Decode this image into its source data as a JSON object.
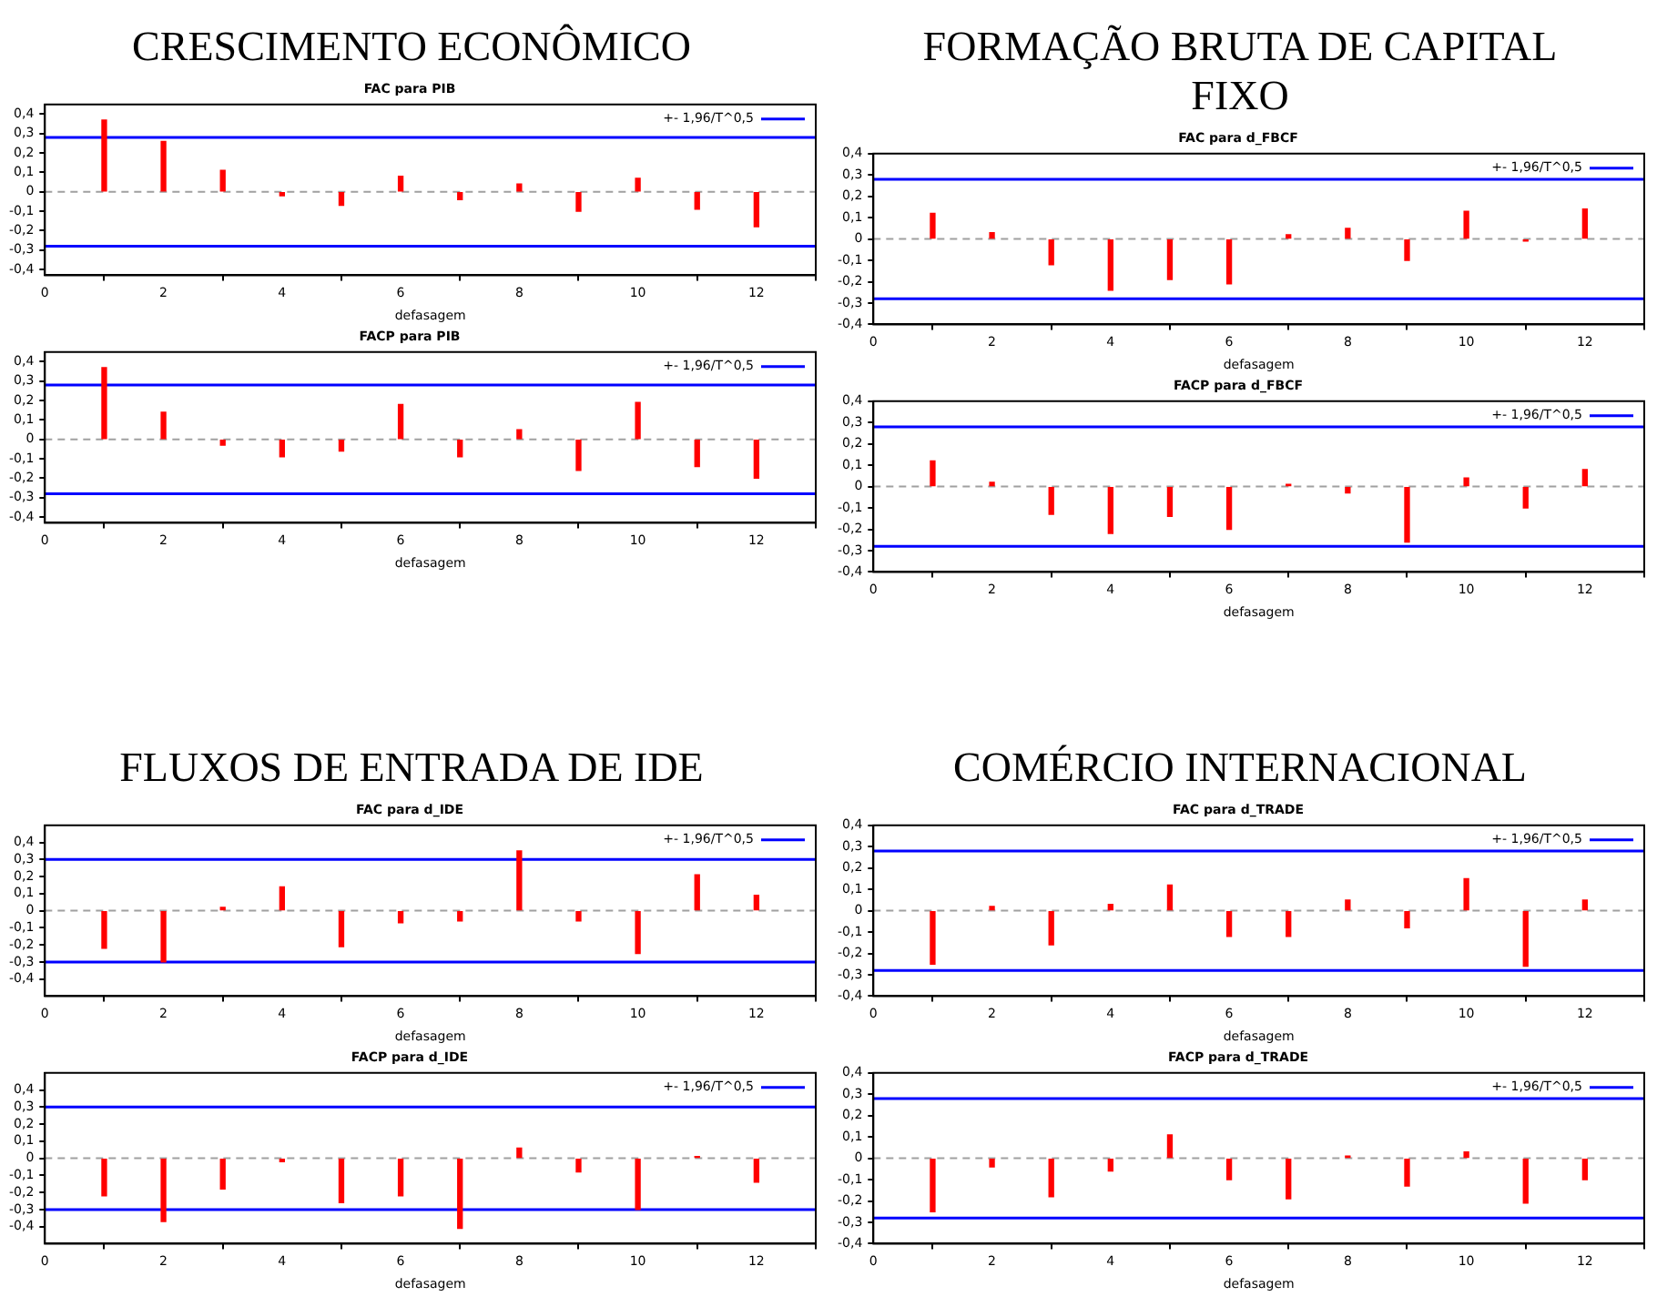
{
  "chart_data": [
    {
      "type": "bar",
      "title": "CRESCIMENTO ECONÔMICO",
      "subtitle": "FAC para PIB",
      "xlabel": "defasagem",
      "x": [
        1,
        2,
        3,
        4,
        5,
        6,
        7,
        8,
        9,
        10,
        11,
        12
      ],
      "color": "#ff0000",
      "values": [
        0.37,
        0.26,
        0.11,
        -0.02,
        -0.07,
        0.08,
        -0.04,
        0.04,
        -0.1,
        0.07,
        -0.09,
        -0.18
      ],
      "xlim": [
        0,
        13
      ],
      "xticks": [
        0,
        2,
        4,
        6,
        8,
        10,
        12
      ],
      "ylim": [
        -0.43,
        0.45
      ],
      "yticks": [
        {
          "value": -0.4,
          "label": "-0,4"
        },
        {
          "value": -0.3,
          "label": "-0,3"
        },
        {
          "value": -0.2,
          "label": "-0,2"
        },
        {
          "value": -0.1,
          "label": "-0,1"
        },
        {
          "value": 0,
          "label": "0"
        },
        {
          "value": 0.1,
          "label": "0,1"
        },
        {
          "value": 0.2,
          "label": "0,2"
        },
        {
          "value": 0.3,
          "label": "0,3"
        },
        {
          "value": 0.4,
          "label": "0,4"
        }
      ],
      "ref_lines": [
        {
          "axis": "y",
          "value": 0.28,
          "label": "+- 1,96/T^0,5",
          "color": "#0000ff"
        },
        {
          "axis": "y",
          "value": -0.28,
          "color": "#0000ff"
        },
        {
          "axis": "y",
          "value": 0,
          "color": "#a0a0a0",
          "line_style": "dashed"
        }
      ],
      "legend": "top right",
      "grid": false
    },
    {
      "type": "bar",
      "title": "FACP para PIB",
      "xlabel": "defasagem",
      "x": [
        1,
        2,
        3,
        4,
        5,
        6,
        7,
        8,
        9,
        10,
        11,
        12
      ],
      "color": "#ff0000",
      "values": [
        0.37,
        0.14,
        -0.03,
        -0.09,
        -0.06,
        0.18,
        -0.09,
        0.05,
        -0.16,
        0.19,
        -0.14,
        -0.2
      ],
      "xlim": [
        0,
        13
      ],
      "xticks": [
        0,
        2,
        4,
        6,
        8,
        10,
        12
      ],
      "ylim": [
        -0.43,
        0.45
      ],
      "yticks": [
        {
          "value": -0.4,
          "label": "-0,4"
        },
        {
          "value": -0.3,
          "label": "-0,3"
        },
        {
          "value": -0.2,
          "label": "-0,2"
        },
        {
          "value": -0.1,
          "label": "-0,1"
        },
        {
          "value": 0,
          "label": "0"
        },
        {
          "value": 0.1,
          "label": "0,1"
        },
        {
          "value": 0.2,
          "label": "0,2"
        },
        {
          "value": 0.3,
          "label": "0,3"
        },
        {
          "value": 0.4,
          "label": "0,4"
        }
      ],
      "ref_lines": [
        {
          "axis": "y",
          "value": 0.28,
          "label": "+- 1,96/T^0,5",
          "color": "#0000ff"
        },
        {
          "axis": "y",
          "value": -0.28,
          "color": "#0000ff"
        },
        {
          "axis": "y",
          "value": 0,
          "color": "#a0a0a0",
          "line_style": "dashed"
        }
      ],
      "legend": "top right",
      "grid": false
    },
    {
      "type": "bar",
      "title": "FORMAÇÃO BRUTA DE CAPITAL FIXO",
      "subtitle": "FAC para d_FBCF",
      "xlabel": "defasagem",
      "x": [
        1,
        2,
        3,
        4,
        5,
        6,
        7,
        8,
        9,
        10,
        11,
        12
      ],
      "color": "#ff0000",
      "values": [
        0.12,
        0.03,
        -0.12,
        -0.24,
        -0.19,
        -0.21,
        0.02,
        0.05,
        -0.1,
        0.13,
        -0.01,
        0.14
      ],
      "xlim": [
        0,
        13
      ],
      "xticks": [
        0,
        2,
        4,
        6,
        8,
        10,
        12
      ],
      "ylim": [
        -0.4,
        0.4
      ],
      "yticks": [
        {
          "value": -0.4,
          "label": "-0,4"
        },
        {
          "value": -0.3,
          "label": "-0,3"
        },
        {
          "value": -0.2,
          "label": "-0,2"
        },
        {
          "value": -0.1,
          "label": "-0,1"
        },
        {
          "value": 0,
          "label": "0"
        },
        {
          "value": 0.1,
          "label": "0,1"
        },
        {
          "value": 0.2,
          "label": "0,2"
        },
        {
          "value": 0.3,
          "label": "0,3"
        },
        {
          "value": 0.4,
          "label": "0,4"
        }
      ],
      "ref_lines": [
        {
          "axis": "y",
          "value": 0.28,
          "label": "+- 1,96/T^0,5",
          "color": "#0000ff"
        },
        {
          "axis": "y",
          "value": -0.28,
          "color": "#0000ff"
        },
        {
          "axis": "y",
          "value": 0,
          "color": "#a0a0a0",
          "line_style": "dashed"
        }
      ],
      "legend": "top right",
      "grid": false
    },
    {
      "type": "bar",
      "title": "FACP para d_FBCF",
      "xlabel": "defasagem",
      "x": [
        1,
        2,
        3,
        4,
        5,
        6,
        7,
        8,
        9,
        10,
        11,
        12
      ],
      "color": "#ff0000",
      "values": [
        0.12,
        0.02,
        -0.13,
        -0.22,
        -0.14,
        -0.2,
        0.01,
        -0.03,
        -0.26,
        0.04,
        -0.1,
        0.08
      ],
      "xlim": [
        0,
        13
      ],
      "xticks": [
        0,
        2,
        4,
        6,
        8,
        10,
        12
      ],
      "ylim": [
        -0.4,
        0.4
      ],
      "yticks": [
        {
          "value": -0.4,
          "label": "-0,4"
        },
        {
          "value": -0.3,
          "label": "-0,3"
        },
        {
          "value": -0.2,
          "label": "-0,2"
        },
        {
          "value": -0.1,
          "label": "-0,1"
        },
        {
          "value": 0,
          "label": "0"
        },
        {
          "value": 0.1,
          "label": "0,1"
        },
        {
          "value": 0.2,
          "label": "0,2"
        },
        {
          "value": 0.3,
          "label": "0,3"
        },
        {
          "value": 0.4,
          "label": "0,4"
        }
      ],
      "ref_lines": [
        {
          "axis": "y",
          "value": 0.28,
          "label": "+- 1,96/T^0,5",
          "color": "#0000ff"
        },
        {
          "axis": "y",
          "value": -0.28,
          "color": "#0000ff"
        },
        {
          "axis": "y",
          "value": 0,
          "color": "#a0a0a0",
          "line_style": "dashed"
        }
      ],
      "legend": "top right",
      "grid": false
    },
    {
      "type": "bar",
      "title": "FLUXOS DE ENTRADA DE IDE",
      "subtitle": "FAC para d_IDE",
      "xlabel": "defasagem",
      "x": [
        1,
        2,
        3,
        4,
        5,
        6,
        7,
        8,
        9,
        10,
        11,
        12
      ],
      "color": "#ff0000",
      "values": [
        -0.22,
        -0.3,
        0.02,
        0.14,
        -0.21,
        -0.07,
        -0.06,
        0.35,
        -0.06,
        -0.25,
        0.21,
        0.09
      ],
      "xlim": [
        0,
        13
      ],
      "xticks": [
        0,
        2,
        4,
        6,
        8,
        10,
        12
      ],
      "ylim": [
        -0.5,
        0.5
      ],
      "yticks": [
        {
          "value": -0.4,
          "label": "-0,4"
        },
        {
          "value": -0.3,
          "label": "-0,3"
        },
        {
          "value": -0.2,
          "label": "-0,2"
        },
        {
          "value": -0.1,
          "label": "-0,1"
        },
        {
          "value": 0,
          "label": "0"
        },
        {
          "value": 0.1,
          "label": "0,1"
        },
        {
          "value": 0.2,
          "label": "0,2"
        },
        {
          "value": 0.3,
          "label": "0,3"
        },
        {
          "value": 0.4,
          "label": "0,4"
        }
      ],
      "ref_lines": [
        {
          "axis": "y",
          "value": 0.3,
          "label": "+- 1,96/T^0,5",
          "color": "#0000ff"
        },
        {
          "axis": "y",
          "value": -0.3,
          "color": "#0000ff"
        },
        {
          "axis": "y",
          "value": 0,
          "color": "#a0a0a0",
          "line_style": "dashed"
        }
      ],
      "legend": "top right",
      "grid": false
    },
    {
      "type": "bar",
      "title": "FACP para d_IDE",
      "xlabel": "defasagem",
      "x": [
        1,
        2,
        3,
        4,
        5,
        6,
        7,
        8,
        9,
        10,
        11,
        12
      ],
      "color": "#ff0000",
      "values": [
        -0.22,
        -0.37,
        -0.18,
        -0.02,
        -0.26,
        -0.22,
        -0.41,
        0.06,
        -0.08,
        -0.3,
        0.01,
        -0.14
      ],
      "xlim": [
        0,
        13
      ],
      "xticks": [
        0,
        2,
        4,
        6,
        8,
        10,
        12
      ],
      "ylim": [
        -0.5,
        0.5
      ],
      "yticks": [
        {
          "value": -0.4,
          "label": "-0,4"
        },
        {
          "value": -0.3,
          "label": "-0,3"
        },
        {
          "value": -0.2,
          "label": "-0,2"
        },
        {
          "value": -0.1,
          "label": "-0,1"
        },
        {
          "value": 0,
          "label": "0"
        },
        {
          "value": 0.1,
          "label": "0,1"
        },
        {
          "value": 0.2,
          "label": "0,2"
        },
        {
          "value": 0.3,
          "label": "0,3"
        },
        {
          "value": 0.4,
          "label": "0,4"
        }
      ],
      "ref_lines": [
        {
          "axis": "y",
          "value": 0.3,
          "label": "+- 1,96/T^0,5",
          "color": "#0000ff"
        },
        {
          "axis": "y",
          "value": -0.3,
          "color": "#0000ff"
        },
        {
          "axis": "y",
          "value": 0,
          "color": "#a0a0a0",
          "line_style": "dashed"
        }
      ],
      "legend": "top right",
      "grid": false
    },
    {
      "type": "bar",
      "title": "COMÉRCIO INTERNACIONAL",
      "subtitle": "FAC para d_TRADE",
      "xlabel": "defasagem",
      "x": [
        1,
        2,
        3,
        4,
        5,
        6,
        7,
        8,
        9,
        10,
        11,
        12
      ],
      "color": "#ff0000",
      "values": [
        -0.25,
        0.02,
        -0.16,
        0.03,
        0.12,
        -0.12,
        -0.12,
        0.05,
        -0.08,
        0.15,
        -0.26,
        0.05
      ],
      "xlim": [
        0,
        13
      ],
      "xticks": [
        0,
        2,
        4,
        6,
        8,
        10,
        12
      ],
      "ylim": [
        -0.4,
        0.4
      ],
      "yticks": [
        {
          "value": -0.4,
          "label": "-0,4"
        },
        {
          "value": -0.3,
          "label": "-0,3"
        },
        {
          "value": -0.2,
          "label": "-0,2"
        },
        {
          "value": -0.1,
          "label": "-0,1"
        },
        {
          "value": 0,
          "label": "0"
        },
        {
          "value": 0.1,
          "label": "0,1"
        },
        {
          "value": 0.2,
          "label": "0,2"
        },
        {
          "value": 0.3,
          "label": "0,3"
        },
        {
          "value": 0.4,
          "label": "0,4"
        }
      ],
      "ref_lines": [
        {
          "axis": "y",
          "value": 0.28,
          "label": "+- 1,96/T^0,5",
          "color": "#0000ff"
        },
        {
          "axis": "y",
          "value": -0.28,
          "color": "#0000ff"
        },
        {
          "axis": "y",
          "value": 0,
          "color": "#a0a0a0",
          "line_style": "dashed"
        }
      ],
      "legend": "top right",
      "grid": false
    },
    {
      "type": "bar",
      "title": "FACP para d_TRADE",
      "xlabel": "defasagem",
      "x": [
        1,
        2,
        3,
        4,
        5,
        6,
        7,
        8,
        9,
        10,
        11,
        12
      ],
      "color": "#ff0000",
      "values": [
        -0.25,
        -0.04,
        -0.18,
        -0.06,
        0.11,
        -0.1,
        -0.19,
        0.01,
        -0.13,
        0.03,
        -0.21,
        -0.1
      ],
      "xlim": [
        0,
        13
      ],
      "xticks": [
        0,
        2,
        4,
        6,
        8,
        10,
        12
      ],
      "ylim": [
        -0.4,
        0.4
      ],
      "yticks": [
        {
          "value": -0.4,
          "label": "-0,4"
        },
        {
          "value": -0.3,
          "label": "-0,3"
        },
        {
          "value": -0.2,
          "label": "-0,2"
        },
        {
          "value": -0.1,
          "label": "-0,1"
        },
        {
          "value": 0,
          "label": "0"
        },
        {
          "value": 0.1,
          "label": "0,1"
        },
        {
          "value": 0.2,
          "label": "0,2"
        },
        {
          "value": 0.3,
          "label": "0,3"
        },
        {
          "value": 0.4,
          "label": "0,4"
        }
      ],
      "ref_lines": [
        {
          "axis": "y",
          "value": 0.28,
          "label": "+- 1,96/T^0,5",
          "color": "#0000ff"
        },
        {
          "axis": "y",
          "value": -0.28,
          "color": "#0000ff"
        },
        {
          "axis": "y",
          "value": 0,
          "color": "#a0a0a0",
          "line_style": "dashed"
        }
      ],
      "legend": "top right",
      "grid": false
    }
  ]
}
